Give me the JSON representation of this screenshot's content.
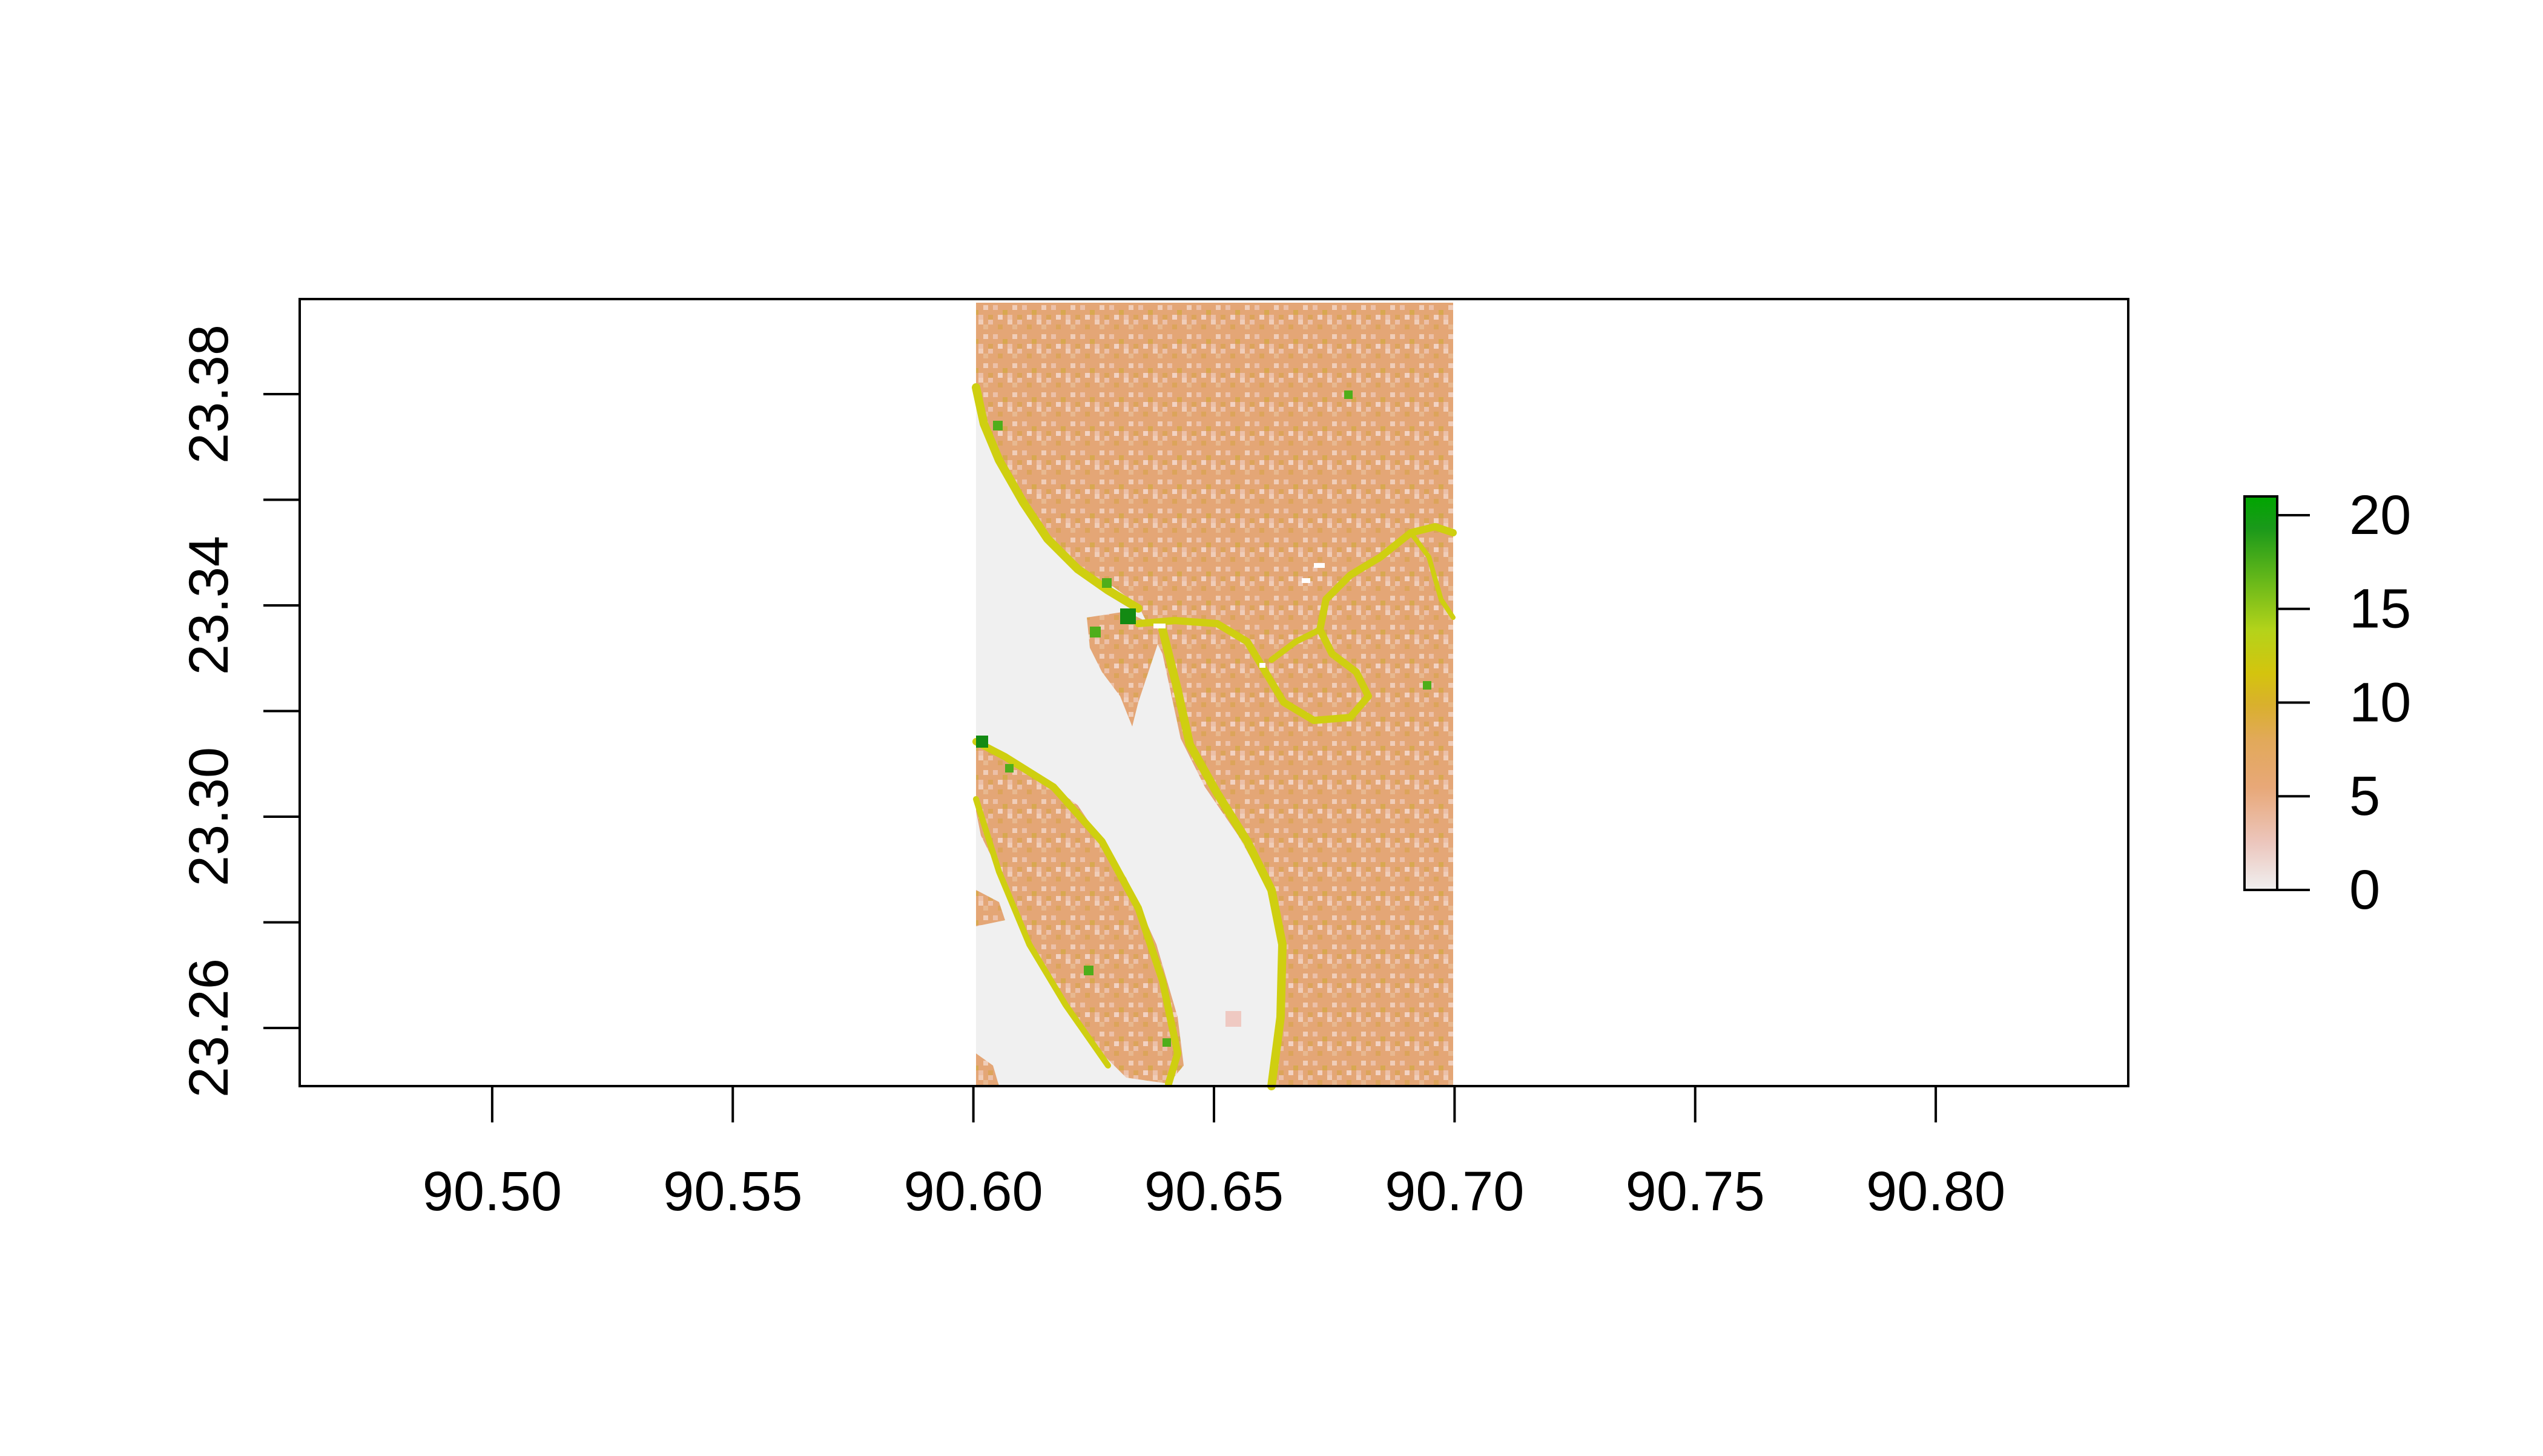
{
  "chart_data": {
    "type": "heatmap",
    "title": "",
    "xlabel": "",
    "ylabel": "",
    "xlim": [
      90.46,
      90.84
    ],
    "ylim": [
      23.249,
      23.398
    ],
    "raster_extent": {
      "x": [
        90.6,
        90.699
      ],
      "y": [
        23.249,
        23.397
      ]
    },
    "x_ticks": [
      "90.50",
      "90.55",
      "90.60",
      "90.65",
      "90.70",
      "90.75",
      "90.80"
    ],
    "x_tick_values": [
      90.5,
      90.55,
      90.6,
      90.65,
      90.7,
      90.75,
      90.8
    ],
    "y_ticks": [
      "23.26",
      "23.30",
      "23.34",
      "23.38"
    ],
    "y_tick_values": [
      23.26,
      23.3,
      23.34,
      23.38
    ],
    "y_minor_tick_values": [
      23.28,
      23.32,
      23.36
    ],
    "legend": {
      "position": "right",
      "min": 0,
      "max": 21,
      "ticks": [
        "0",
        "5",
        "10",
        "15",
        "20"
      ],
      "tick_values": [
        0,
        5,
        10,
        15,
        20
      ],
      "colors": [
        "#f0f0f0",
        "#ecc6bd",
        "#e8a878",
        "#e2a95a",
        "#d9b02d",
        "#d4c40e",
        "#b4d31a",
        "#5fb51a",
        "#1a991a",
        "#00a600"
      ]
    },
    "colors": {
      "background": "#ffffff",
      "no_data": "#f0f0f0",
      "land": "#e6aa7c",
      "bank": "#cfcf10"
    }
  }
}
